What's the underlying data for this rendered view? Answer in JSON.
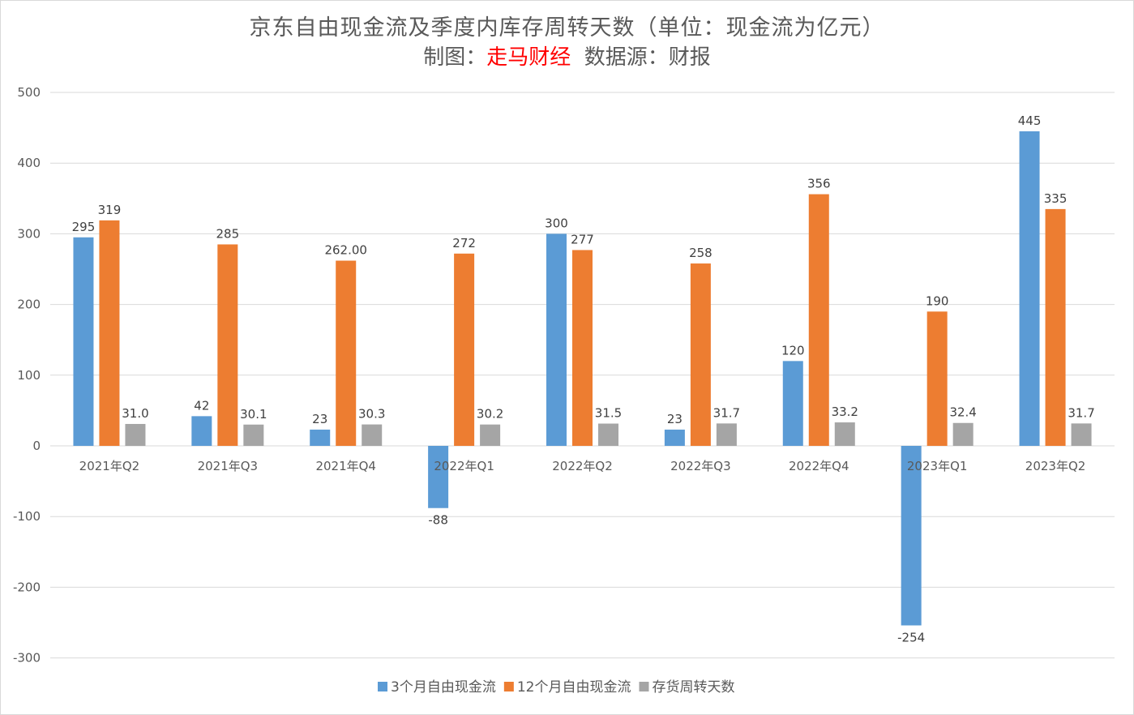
{
  "title_line1": "京东自由现金流及季度内库存周转天数（单位：现金流为亿元）",
  "subtitle_prefix": "制图：",
  "subtitle_brand": "走马财经",
  "subtitle_suffix": "  数据源：财报",
  "colors": {
    "series1": "#5b9bd5",
    "series2": "#ed7d31",
    "series3": "#a5a5a5",
    "grid": "#d9d9d9",
    "brand": "#ff0000"
  },
  "chart_data": {
    "type": "bar",
    "categories": [
      "2021年Q2",
      "2021年Q3",
      "2021年Q4",
      "2022年Q1",
      "2022年Q2",
      "2022年Q3",
      "2022年Q4",
      "2023年Q1",
      "2023年Q2"
    ],
    "series": [
      {
        "name": "3个月自由现金流",
        "values": [
          295,
          42,
          23,
          -88,
          300,
          23,
          120,
          -254,
          445
        ],
        "labels": [
          "295",
          "42",
          "23",
          "-88",
          "300",
          "23",
          "120",
          "-254",
          "445"
        ]
      },
      {
        "name": "12个月自由现金流",
        "values": [
          319,
          285,
          262,
          272,
          277,
          258,
          356,
          190,
          335
        ],
        "labels": [
          "319",
          "285",
          "262.00",
          "272",
          "277",
          "258",
          "356",
          "190",
          "335"
        ]
      },
      {
        "name": "存货周转天数",
        "values": [
          31.0,
          30.1,
          30.3,
          30.2,
          31.5,
          31.7,
          33.2,
          32.4,
          31.7
        ],
        "labels": [
          "31.0",
          "30.1",
          "30.3",
          "30.2",
          "31.5",
          "31.7",
          "33.2",
          "32.4",
          "31.7"
        ]
      }
    ],
    "ylim": [
      -300,
      500
    ],
    "yticks": [
      "-300",
      "-200",
      "-100",
      "0",
      "100",
      "200",
      "300",
      "400",
      "500"
    ],
    "grid": true,
    "legend_position": "bottom"
  }
}
